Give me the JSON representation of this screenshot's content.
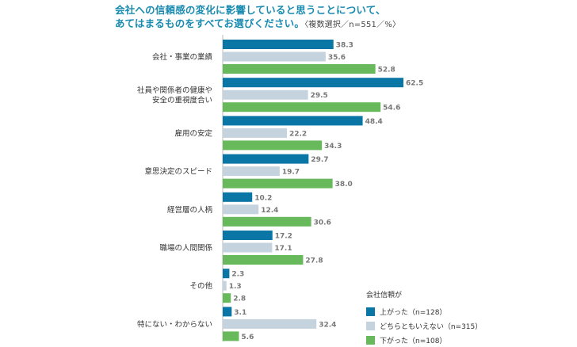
{
  "title": {
    "line1": "会社への信頼感の変化に影響していると思うことについて、",
    "line2": "あてはまるものをすべてお選びください。",
    "note": "〈複数選択／n=551／%〉"
  },
  "legend": {
    "title": "会社信頼が",
    "items": [
      {
        "label": "上がった（n=128）",
        "color": "#0a76a6"
      },
      {
        "label": "どちらともいえない（n=315）",
        "color": "#c5d3de"
      },
      {
        "label": "下がった（n=108）",
        "color": "#68b95c"
      }
    ]
  },
  "chart_data": {
    "type": "bar",
    "orientation": "horizontal",
    "categories": [
      [
        "会社・事業の業績"
      ],
      [
        "社員や関係者の健康や",
        "安全の重視度合い"
      ],
      [
        "雇用の安定"
      ],
      [
        "意思決定のスピード"
      ],
      [
        "経営層の人柄"
      ],
      [
        "職場の人間関係"
      ],
      [
        "その他"
      ],
      [
        "特にない・わからない"
      ]
    ],
    "series": [
      {
        "name": "上がった（n=128）",
        "color": "#0a76a6",
        "values": [
          38.3,
          62.5,
          48.4,
          29.7,
          10.2,
          17.2,
          2.3,
          3.1
        ]
      },
      {
        "name": "どちらともいえない（n=315）",
        "color": "#c5d3de",
        "values": [
          35.6,
          29.5,
          22.2,
          19.7,
          12.4,
          17.1,
          1.3,
          32.4
        ]
      },
      {
        "name": "下がった（n=108）",
        "color": "#68b95c",
        "values": [
          52.8,
          54.6,
          34.3,
          38.0,
          30.6,
          27.8,
          2.8,
          5.6
        ]
      }
    ],
    "xlim": [
      0,
      62.5
    ],
    "legend_position": "bottom-right",
    "grid": false
  }
}
